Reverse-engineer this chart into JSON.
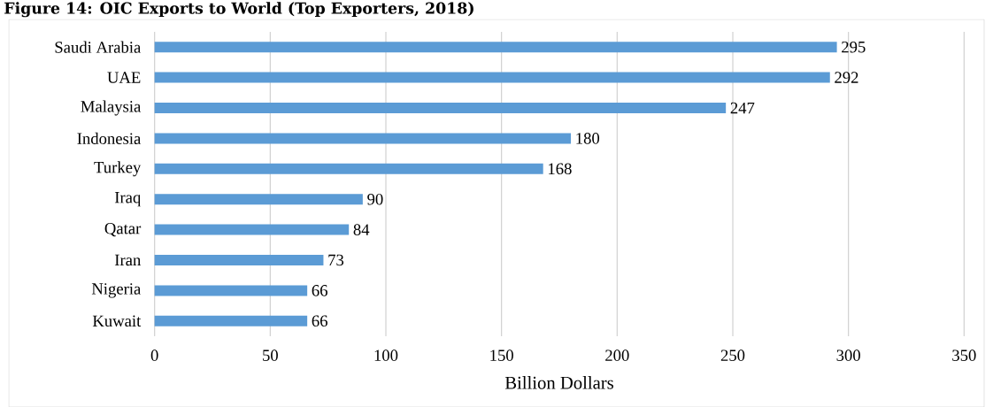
{
  "chart_data": {
    "type": "bar",
    "orientation": "horizontal",
    "title": "Figure 14: OIC Exports to World (Top Exporters, 2018)",
    "categories": [
      "Saudi Arabia",
      "UAE",
      "Malaysia",
      "Indonesia",
      "Turkey",
      "Iraq",
      "Qatar",
      "Iran",
      "Nigeria",
      "Kuwait"
    ],
    "values": [
      295,
      292,
      247,
      180,
      168,
      90,
      84,
      73,
      66,
      66
    ],
    "color": "#5b9bd5",
    "xlim": [
      0,
      350
    ],
    "xticks": [
      0,
      50,
      100,
      150,
      200,
      250,
      300,
      350
    ],
    "xlabel": "Billion Dollars",
    "grid": "x",
    "data_labels": true
  }
}
